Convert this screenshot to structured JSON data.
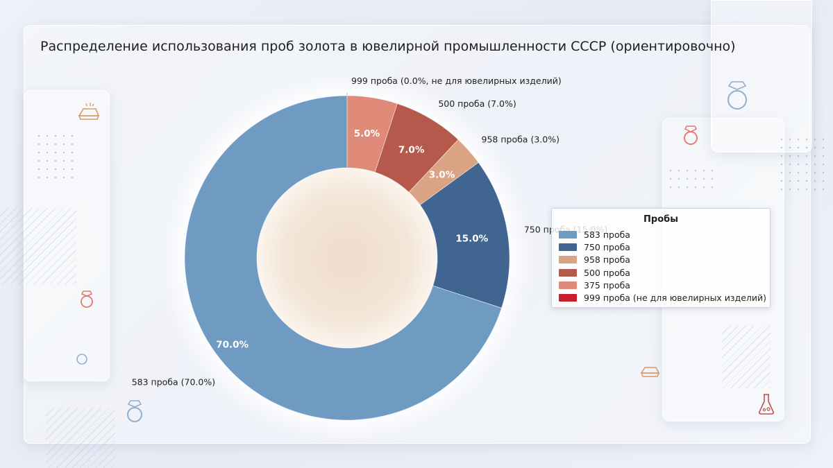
{
  "chart_data": {
    "type": "pie",
    "title": "Распределение использования проб золота в ювелирной промышленности СССР (ориентировочно)",
    "legend_title": "Пробы",
    "legend_position": "right",
    "slices": [
      {
        "label": "999 проба (не для ювелирных изделий)",
        "value": 0.0,
        "color": "#c8202a",
        "outer_label": "999 проба (0.0%, не для ювелирных изделий)",
        "inner_label": ""
      },
      {
        "label": "375 проба",
        "value": 5.0,
        "color": "#e08a7a",
        "outer_label": "",
        "inner_label": "5.0%"
      },
      {
        "label": "500 проба",
        "value": 7.0,
        "color": "#b5594c",
        "outer_label": "500 проба (7.0%)",
        "inner_label": "7.0%"
      },
      {
        "label": "958 проба",
        "value": 3.0,
        "color": "#daa383",
        "outer_label": "958 проба (3.0%)",
        "inner_label": "3.0%"
      },
      {
        "label": "750 проба",
        "value": 15.0,
        "color": "#3f6590",
        "outer_label": "750 проба (15.0%)",
        "inner_label": "15.0%"
      },
      {
        "label": "583 проба",
        "value": 70.0,
        "color": "#6f9bc3",
        "outer_label": "583 проба (70.0%)",
        "inner_label": "70.0%"
      }
    ],
    "legend_order": [
      "583 проба",
      "750 проба",
      "958 проба",
      "500 проба",
      "375 проба",
      "999 проба (не для ювелирных изделий)"
    ]
  },
  "icons": [
    "gold-bar-icon",
    "ring-icon",
    "flask-icon"
  ]
}
